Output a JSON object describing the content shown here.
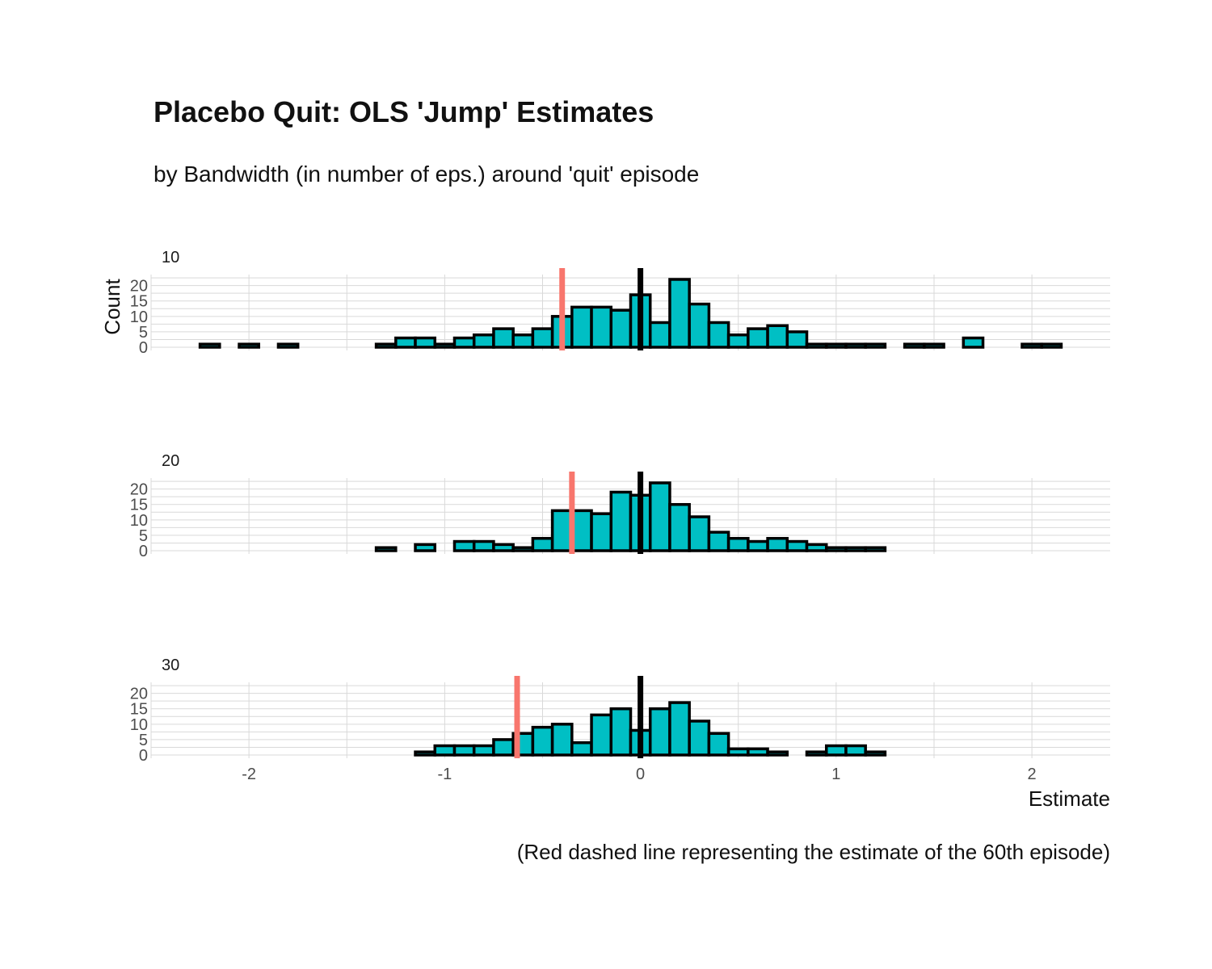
{
  "title": "Placebo Quit: OLS 'Jump' Estimates",
  "subtitle": "by Bandwidth (in number of eps.) around 'quit' episode",
  "caption": "(Red dashed line representing the estimate of the 60th episode)",
  "colors": {
    "fill": "#00bfc4",
    "outline": "#000000",
    "reference_line": "#f8766d",
    "zero_line": "#000000",
    "grid": "#d9d9d9"
  },
  "chart_data": {
    "type": "bar",
    "xlabel": "Estimate",
    "ylabel": "Count",
    "xlim": [
      -2.5,
      2.4
    ],
    "ylim": [
      0,
      22
    ],
    "x_ticks": [
      -2,
      -1,
      0,
      1,
      2
    ],
    "x_tick_labels": [
      "-2",
      "-1",
      "0",
      "1",
      "2"
    ],
    "y_ticks": [
      0,
      5,
      10,
      15,
      20
    ],
    "y_tick_labels": [
      "0",
      "5",
      "10",
      "15",
      "20"
    ],
    "bin_width": 0.1,
    "grid": true,
    "zero_line_x": 0,
    "panels": [
      {
        "label": "10",
        "reference_x": -0.4,
        "bin_starts": [
          -2.25,
          -2.15,
          -2.05,
          -1.95,
          -1.85,
          -1.75,
          -1.65,
          -1.55,
          -1.45,
          -1.35,
          -1.25,
          -1.15,
          -1.05,
          -0.95,
          -0.85,
          -0.75,
          -0.65,
          -0.55,
          -0.45,
          -0.35,
          -0.25,
          -0.15,
          -0.05,
          0.05,
          0.15,
          0.25,
          0.35,
          0.45,
          0.55,
          0.65,
          0.75,
          0.85,
          0.95,
          1.05,
          1.15,
          1.25,
          1.35,
          1.45,
          1.55,
          1.65,
          1.75,
          1.85,
          1.95,
          2.05
        ],
        "counts": [
          1,
          0,
          1,
          0,
          1,
          0,
          0,
          0,
          0,
          1,
          3,
          3,
          1,
          3,
          4,
          6,
          4,
          6,
          10,
          13,
          13,
          12,
          17,
          8,
          22,
          14,
          8,
          4,
          6,
          7,
          5,
          1,
          1,
          1,
          1,
          0,
          1,
          1,
          0,
          3,
          0,
          0,
          1,
          1
        ]
      },
      {
        "label": "20",
        "reference_x": -0.35,
        "bin_starts": [
          -2.25,
          -2.15,
          -2.05,
          -1.95,
          -1.85,
          -1.75,
          -1.65,
          -1.55,
          -1.45,
          -1.35,
          -1.25,
          -1.15,
          -1.05,
          -0.95,
          -0.85,
          -0.75,
          -0.65,
          -0.55,
          -0.45,
          -0.35,
          -0.25,
          -0.15,
          -0.05,
          0.05,
          0.15,
          0.25,
          0.35,
          0.45,
          0.55,
          0.65,
          0.75,
          0.85,
          0.95,
          1.05,
          1.15,
          1.25,
          1.35,
          1.45,
          1.55,
          1.65,
          1.75,
          1.85,
          1.95,
          2.05
        ],
        "counts": [
          0,
          0,
          0,
          0,
          0,
          0,
          0,
          0,
          0,
          1,
          0,
          2,
          0,
          3,
          3,
          2,
          1,
          4,
          13,
          13,
          12,
          19,
          18,
          22,
          15,
          11,
          6,
          4,
          3,
          4,
          3,
          2,
          1,
          1,
          1,
          0,
          0,
          0,
          0,
          0,
          0,
          0,
          0,
          0
        ]
      },
      {
        "label": "30",
        "reference_x": -0.63,
        "bin_starts": [
          -2.25,
          -2.15,
          -2.05,
          -1.95,
          -1.85,
          -1.75,
          -1.65,
          -1.55,
          -1.45,
          -1.35,
          -1.25,
          -1.15,
          -1.05,
          -0.95,
          -0.85,
          -0.75,
          -0.65,
          -0.55,
          -0.45,
          -0.35,
          -0.25,
          -0.15,
          -0.05,
          0.05,
          0.15,
          0.25,
          0.35,
          0.45,
          0.55,
          0.65,
          0.75,
          0.85,
          0.95,
          1.05,
          1.15,
          1.25,
          1.35,
          1.45,
          1.55,
          1.65,
          1.75,
          1.85,
          1.95,
          2.05
        ],
        "counts": [
          0,
          0,
          0,
          0,
          0,
          0,
          0,
          0,
          0,
          0,
          0,
          1,
          3,
          3,
          3,
          5,
          7,
          9,
          10,
          4,
          13,
          15,
          8,
          15,
          17,
          11,
          7,
          2,
          2,
          1,
          0,
          1,
          3,
          3,
          1,
          0,
          0,
          0,
          0,
          0,
          0,
          0,
          0,
          0
        ]
      }
    ]
  }
}
